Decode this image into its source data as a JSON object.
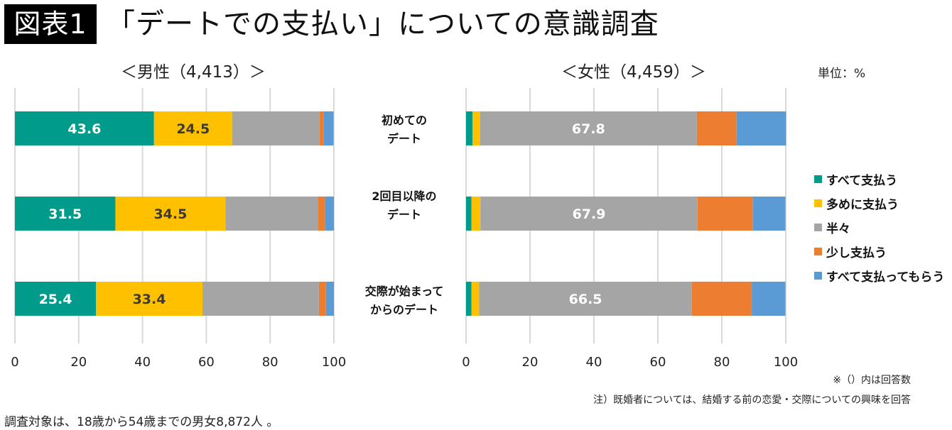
{
  "header": {
    "figure_label": "図表1",
    "title": "「デートでの支払い」についての意識調査"
  },
  "unit_label": "単位：%",
  "legend": [
    {
      "label": "すべて支払う",
      "color": "#009b8a"
    },
    {
      "label": "多めに支払う",
      "color": "#ffc000"
    },
    {
      "label": "半々",
      "color": "#a5a5a5"
    },
    {
      "label": "少し支払う",
      "color": "#ed7d31"
    },
    {
      "label": "すべて支払ってもらう",
      "color": "#5b9bd5"
    }
  ],
  "categories": [
    {
      "line1": "初めての",
      "line2": "デート"
    },
    {
      "line1": "2回目以降の",
      "line2": "デート"
    },
    {
      "line1": "交際が始まって",
      "line2": "からのデート"
    }
  ],
  "notes": {
    "respondents": "※（）内は回答数",
    "married": "注）既婚者については、結婚する前の恋愛・交際についての興味を回答",
    "footer": "調査対象は、18歳から54歳までの男女8,872人 。"
  },
  "chart_data": [
    {
      "type": "bar",
      "orientation": "horizontal",
      "stacked": true,
      "title": "＜男性（4,413）＞",
      "categories": [
        "初めてのデート",
        "2回目以降のデート",
        "交際が始まってからのデート"
      ],
      "series": [
        {
          "name": "すべて支払う",
          "values": [
            43.6,
            31.5,
            25.4
          ],
          "labeled": true,
          "label_color": "#ffffff"
        },
        {
          "name": "多めに支払う",
          "values": [
            24.5,
            34.5,
            33.4
          ],
          "labeled": true,
          "label_color": "#3a3a3a"
        },
        {
          "name": "半々",
          "values": [
            27.4,
            29.1,
            36.5
          ],
          "labeled": false
        },
        {
          "name": "少し支払う",
          "values": [
            1.3,
            2.2,
            2.2
          ],
          "labeled": false
        },
        {
          "name": "すべて支払ってもらう",
          "values": [
            3.1,
            2.7,
            2.5
          ],
          "labeled": false
        }
      ],
      "xlim": [
        0,
        100
      ],
      "xticks": [
        0,
        20,
        40,
        60,
        80,
        100
      ],
      "grid": true,
      "xlabel": "",
      "ylabel": ""
    },
    {
      "type": "bar",
      "orientation": "horizontal",
      "stacked": true,
      "title": "＜女性（4,459）＞",
      "categories": [
        "初めてのデート",
        "2回目以降のデート",
        "交際が始まってからのデート"
      ],
      "series": [
        {
          "name": "すべて支払う",
          "values": [
            2.0,
            1.7,
            1.7
          ],
          "labeled": false
        },
        {
          "name": "多めに支払う",
          "values": [
            2.4,
            2.8,
            2.4
          ],
          "labeled": false
        },
        {
          "name": "半々",
          "values": [
            67.8,
            67.9,
            66.5
          ],
          "labeled": true,
          "label_color": "#ffffff"
        },
        {
          "name": "少し支払う",
          "values": [
            12.4,
            17.3,
            18.8
          ],
          "labeled": false
        },
        {
          "name": "すべて支払ってもらう",
          "values": [
            15.5,
            10.2,
            10.5
          ],
          "labeled": false
        }
      ],
      "xlim": [
        0,
        100
      ],
      "xticks": [
        0,
        20,
        40,
        60,
        80,
        100
      ],
      "grid": true,
      "xlabel": "",
      "ylabel": ""
    }
  ]
}
